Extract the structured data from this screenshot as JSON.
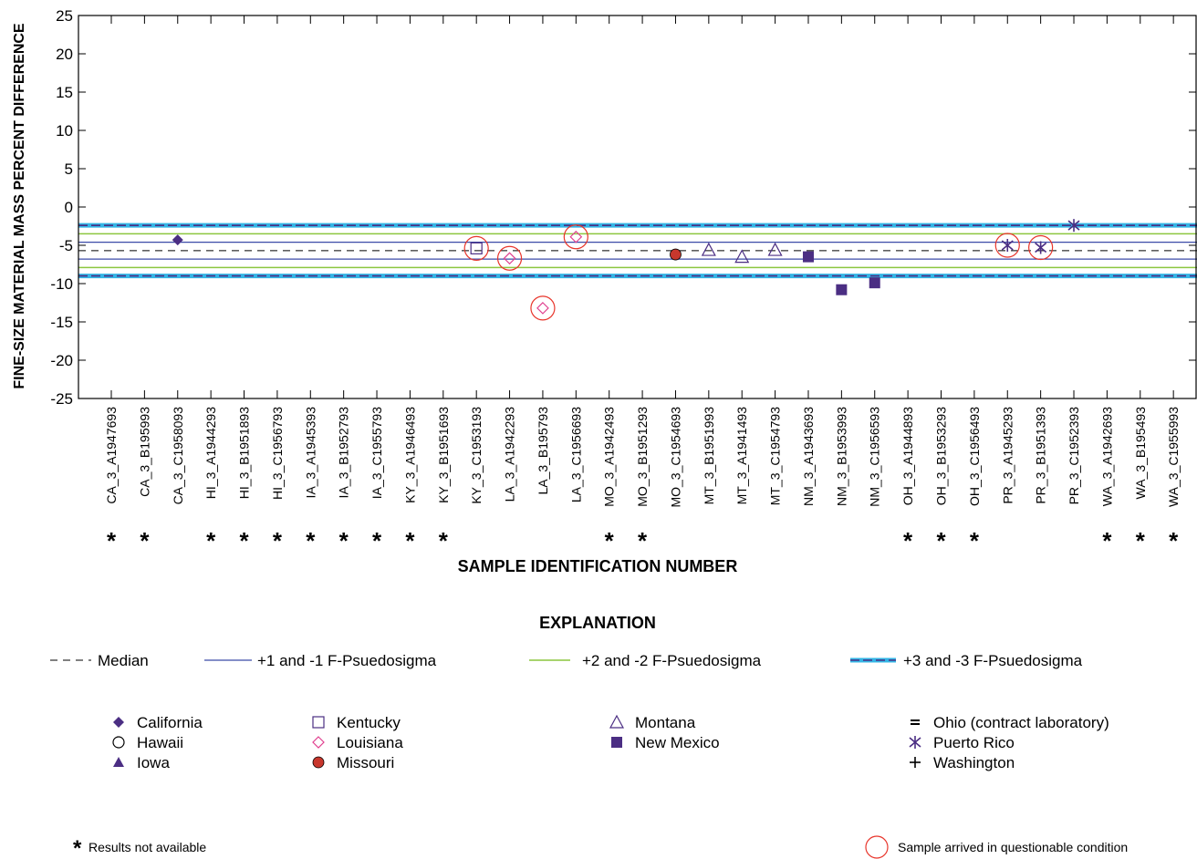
{
  "chart_data": {
    "type": "scatter",
    "ylabel": "FINE-SIZE MATERIAL MASS PERCENT DIFFERENCE",
    "xlabel": "SAMPLE IDENTIFICATION NUMBER",
    "ylim": [
      -25,
      25
    ],
    "yticks": [
      25,
      20,
      15,
      10,
      5,
      0,
      -5,
      -10,
      -15,
      -20,
      -25
    ],
    "categories": [
      "CA_3_A1947693",
      "CA_3_B195993",
      "CA_3_C1958093",
      "HI_3_A1944293",
      "HI_3_B1951893",
      "HI_3_C1956793",
      "IA_3_A1945393",
      "IA_3_B1952793",
      "IA_3_C1955793",
      "KY_3_A1946493",
      "KY_3_B1951693",
      "KY_3_C1953193",
      "LA_3_A1942293",
      "LA_3_B195793",
      "LA_3_C1956693",
      "MO_3_A1942493",
      "MO_3_B1951293",
      "MO_3_C1954693",
      "MT_3_B1951993",
      "MT_3_A1941493",
      "MT_3_C1954793",
      "NM_3_A1943693",
      "NM_3_B1953993",
      "NM_3_C1956593",
      "OH_3_A1944893",
      "OH_3_B1953293",
      "OH_3_C1956493",
      "PR_3_A1945293",
      "PR_3_B1951393",
      "PR_3_C1952393",
      "WA_3_A1942693",
      "WA_3_B195493",
      "WA_3_C1955993"
    ],
    "not_available": [
      "CA_3_A1947693",
      "CA_3_B195993",
      "HI_3_A1944293",
      "HI_3_B1951893",
      "HI_3_C1956793",
      "IA_3_A1945393",
      "IA_3_B1952793",
      "IA_3_C1955793",
      "KY_3_A1946493",
      "KY_3_B1951693",
      "MO_3_A1942493",
      "MO_3_B1951293",
      "OH_3_A1944893",
      "OH_3_B1953293",
      "OH_3_C1956493",
      "WA_3_A1942693",
      "WA_3_B195493",
      "WA_3_C1955993"
    ],
    "points": [
      {
        "id": "CA_3_C1958093",
        "y": -4.3,
        "symbol": "diamond-filled",
        "color": "#4b2e83",
        "questionable": false
      },
      {
        "id": "KY_3_C1953193",
        "y": -5.4,
        "symbol": "square-open",
        "color": "#4b2e83",
        "questionable": true
      },
      {
        "id": "LA_3_A1942293",
        "y": -6.7,
        "symbol": "diamond-open",
        "color": "#e0408f",
        "questionable": true
      },
      {
        "id": "LA_3_B195793",
        "y": -13.2,
        "symbol": "diamond-open",
        "color": "#e0408f",
        "questionable": true
      },
      {
        "id": "LA_3_C1956693",
        "y": -3.9,
        "symbol": "diamond-open",
        "color": "#e0408f",
        "questionable": true
      },
      {
        "id": "MO_3_C1954693",
        "y": -6.2,
        "symbol": "circle-filled",
        "color": "#c8372d",
        "questionable": false
      },
      {
        "id": "MT_3_B1951993",
        "y": -5.6,
        "symbol": "triangle-open",
        "color": "#4b2e83",
        "questionable": false
      },
      {
        "id": "MT_3_A1941493",
        "y": -6.5,
        "symbol": "triangle-open",
        "color": "#4b2e83",
        "questionable": false
      },
      {
        "id": "MT_3_C1954793",
        "y": -5.6,
        "symbol": "triangle-open",
        "color": "#4b2e83",
        "questionable": false
      },
      {
        "id": "NM_3_A1943693",
        "y": -6.5,
        "symbol": "square-filled",
        "color": "#4b2e83",
        "questionable": false
      },
      {
        "id": "NM_3_B1953993",
        "y": -10.8,
        "symbol": "square-filled",
        "color": "#4b2e83",
        "questionable": false
      },
      {
        "id": "NM_3_C1956593",
        "y": -9.9,
        "symbol": "square-filled",
        "color": "#4b2e83",
        "questionable": false
      },
      {
        "id": "PR_3_A1945293",
        "y": -5.0,
        "symbol": "asterisk",
        "color": "#4b2e83",
        "questionable": true
      },
      {
        "id": "PR_3_B1951393",
        "y": -5.3,
        "symbol": "asterisk",
        "color": "#4b2e83",
        "questionable": true
      },
      {
        "id": "PR_3_C1952393",
        "y": -2.4,
        "symbol": "asterisk",
        "color": "#4b2e83",
        "questionable": false
      }
    ],
    "reference_lines": {
      "median": -5.7,
      "sigma1": [
        -4.6,
        -6.8
      ],
      "sigma2": [
        -3.5,
        -7.9
      ],
      "sigma3": [
        -2.4,
        -9.0
      ]
    },
    "colors": {
      "median": "#000000",
      "sigma1": "#3b4ba8",
      "sigma2": "#8cc63f",
      "sigma3_outer": "#33b5e5",
      "sigma3_inner": "#4b2e83",
      "questionable_circle": "#e8352b"
    }
  },
  "explanation": {
    "title": "EXPLANATION",
    "lines": [
      {
        "label": "Median",
        "key": "median"
      },
      {
        "label": "+1 and -1 F-Psuedosigma",
        "key": "sigma1"
      },
      {
        "label": "+2 and -2 F-Psuedosigma",
        "key": "sigma2"
      },
      {
        "label": "+3 and -3 F-Psuedosigma",
        "key": "sigma3"
      }
    ],
    "symbol_columns": [
      [
        {
          "label": "California",
          "symbol": "diamond-filled",
          "color": "#4b2e83"
        },
        {
          "label": "Hawaii",
          "symbol": "circle-open",
          "color": "#000000"
        },
        {
          "label": "Iowa",
          "symbol": "triangle-filled",
          "color": "#4b2e83"
        }
      ],
      [
        {
          "label": "Kentucky",
          "symbol": "square-open",
          "color": "#4b2e83"
        },
        {
          "label": "Louisiana",
          "symbol": "diamond-open",
          "color": "#e0408f"
        },
        {
          "label": "Missouri",
          "symbol": "circle-filled",
          "color": "#c8372d"
        }
      ],
      [
        {
          "label": "Montana",
          "symbol": "triangle-open",
          "color": "#4b2e83"
        },
        {
          "label": "New Mexico",
          "symbol": "square-filled",
          "color": "#4b2e83"
        }
      ],
      [
        {
          "label": "Ohio (contract laboratory)",
          "symbol": "double-bar",
          "color": "#000000"
        },
        {
          "label": "Puerto Rico",
          "symbol": "asterisk",
          "color": "#4b2e83"
        },
        {
          "label": "Washington",
          "symbol": "plus",
          "color": "#000000"
        }
      ]
    ],
    "footnote_star": "*",
    "footnote_text": "Results not available",
    "questionable_text": "Sample arrived in questionable condition"
  }
}
